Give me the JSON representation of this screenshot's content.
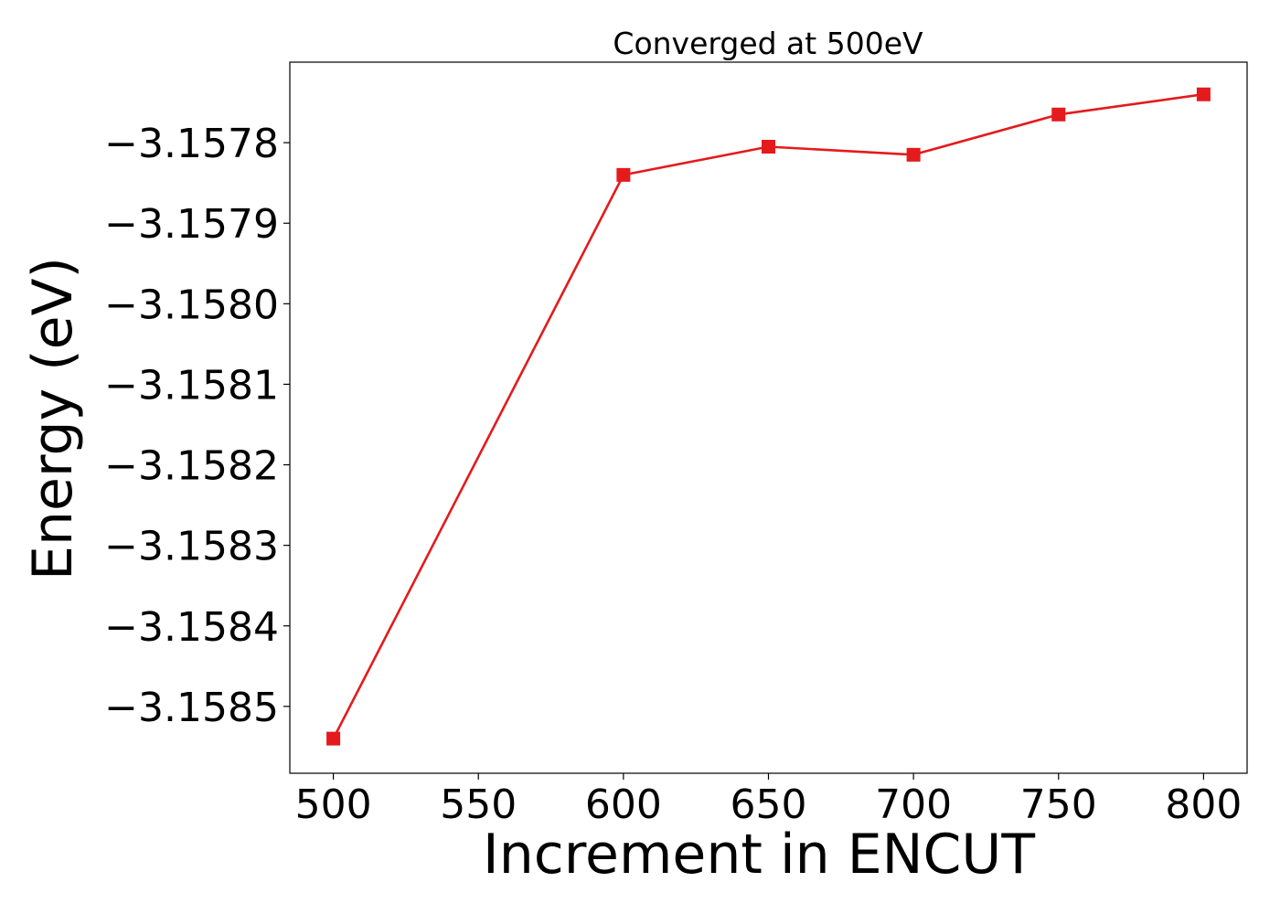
{
  "chart_data": {
    "type": "line",
    "title": "Converged at 500eV",
    "xlabel": "Increment in ENCUT",
    "ylabel": "Energy (eV)",
    "x": [
      500,
      600,
      650,
      700,
      750,
      800
    ],
    "series": [
      {
        "name": "",
        "values": [
          -3.15854,
          -3.15784,
          -3.157805,
          -3.157815,
          -3.157765,
          -3.15774
        ],
        "color": "#e41a1c",
        "marker": "square"
      }
    ],
    "xticks": [
      500,
      550,
      600,
      650,
      700,
      750,
      800
    ],
    "xtick_labels": [
      "500",
      "550",
      "600",
      "650",
      "700",
      "750",
      "800"
    ],
    "yticks": [
      -3.1585,
      -3.1584,
      -3.1583,
      -3.1582,
      -3.1581,
      -3.158,
      -3.1579,
      -3.1578
    ],
    "ytick_labels": [
      "−3.1585",
      "−3.1584",
      "−3.1583",
      "−3.1582",
      "−3.1581",
      "−3.1580",
      "−3.1579",
      "−3.1578"
    ],
    "xlim": [
      485,
      815
    ],
    "ylim": [
      -3.158583,
      -3.1577
    ],
    "grid": false,
    "legend": "none"
  }
}
